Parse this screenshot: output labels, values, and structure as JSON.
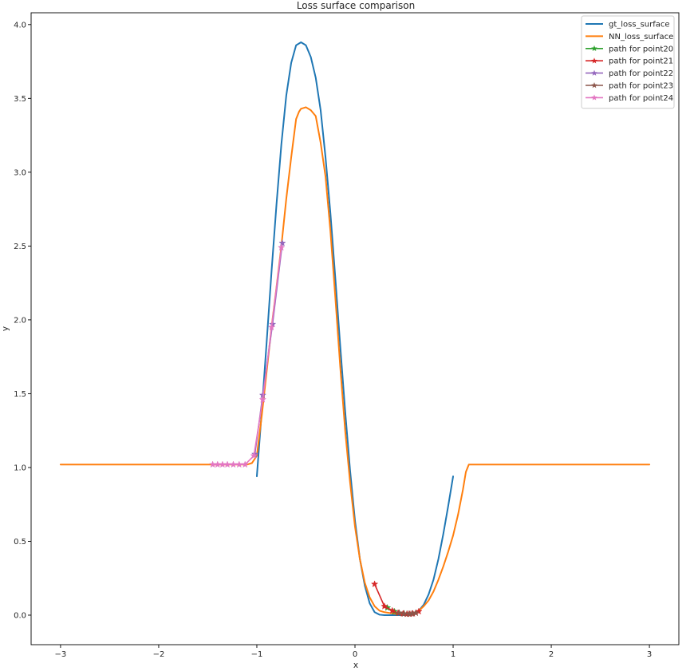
{
  "chart_data": {
    "type": "line",
    "title": "Loss surface comparison",
    "xlabel": "x",
    "ylabel": "y",
    "xlim": [
      -3.3,
      3.3
    ],
    "ylim": [
      -0.2,
      4.08
    ],
    "xticks": [
      -3,
      -2,
      -1,
      0,
      1,
      2,
      3
    ],
    "xtick_labels": [
      "−3",
      "−2",
      "−1",
      "0",
      "1",
      "2",
      "3"
    ],
    "yticks": [
      0.0,
      0.5,
      1.0,
      1.5,
      2.0,
      2.5,
      3.0,
      3.5,
      4.0
    ],
    "ytick_labels": [
      "0.0",
      "0.5",
      "1.0",
      "1.5",
      "2.0",
      "2.5",
      "3.0",
      "3.5",
      "4.0"
    ],
    "grid": false,
    "legend_position": "top-right",
    "series": [
      {
        "name": "gt_loss_surface",
        "color": "#1f77b4",
        "marker": "none",
        "x": [
          -1.0,
          -0.95,
          -0.9,
          -0.85,
          -0.8,
          -0.75,
          -0.7,
          -0.65,
          -0.6,
          -0.55,
          -0.5,
          -0.45,
          -0.4,
          -0.35,
          -0.3,
          -0.25,
          -0.2,
          -0.15,
          -0.1,
          -0.05,
          0.0,
          0.05,
          0.1,
          0.15,
          0.2,
          0.25,
          0.3,
          0.35,
          0.4,
          0.45,
          0.5,
          0.55,
          0.6,
          0.65,
          0.7,
          0.75,
          0.8,
          0.85,
          0.9,
          0.95,
          1.0
        ],
        "y": [
          0.94,
          1.38,
          1.85,
          2.33,
          2.78,
          3.19,
          3.52,
          3.74,
          3.86,
          3.88,
          3.86,
          3.78,
          3.64,
          3.42,
          3.1,
          2.72,
          2.28,
          1.82,
          1.38,
          0.98,
          0.64,
          0.38,
          0.2,
          0.08,
          0.02,
          0.003,
          0.0,
          0.0,
          0.0,
          0.0,
          0.0,
          0.0,
          0.01,
          0.03,
          0.07,
          0.14,
          0.24,
          0.38,
          0.55,
          0.74,
          0.94
        ]
      },
      {
        "name": "NN_loss_surface",
        "color": "#ff7f0e",
        "marker": "none",
        "x": [
          -3.0,
          -1.3,
          -1.1,
          -1.05,
          -1.0,
          -0.95,
          -0.9,
          -0.85,
          -0.8,
          -0.75,
          -0.7,
          -0.65,
          -0.6,
          -0.57,
          -0.55,
          -0.5,
          -0.45,
          -0.4,
          -0.35,
          -0.3,
          -0.25,
          -0.2,
          -0.15,
          -0.1,
          -0.05,
          0.0,
          0.05,
          0.1,
          0.15,
          0.2,
          0.25,
          0.3,
          0.35,
          0.4,
          0.45,
          0.5,
          0.55,
          0.6,
          0.65,
          0.7,
          0.75,
          0.8,
          0.85,
          0.9,
          0.95,
          1.0,
          1.05,
          1.1,
          1.13,
          1.16,
          1.2,
          3.0
        ],
        "y": [
          1.02,
          1.02,
          1.02,
          1.03,
          1.08,
          1.35,
          1.65,
          1.95,
          2.22,
          2.5,
          2.82,
          3.1,
          3.36,
          3.41,
          3.43,
          3.44,
          3.42,
          3.38,
          3.2,
          2.97,
          2.6,
          2.15,
          1.68,
          1.25,
          0.9,
          0.6,
          0.38,
          0.22,
          0.12,
          0.06,
          0.03,
          0.02,
          0.015,
          0.01,
          0.008,
          0.008,
          0.01,
          0.015,
          0.03,
          0.06,
          0.1,
          0.16,
          0.24,
          0.33,
          0.43,
          0.54,
          0.68,
          0.85,
          0.97,
          1.02,
          1.02,
          1.02
        ]
      },
      {
        "name": "path for point20",
        "color": "#2ca02c",
        "marker": "star",
        "x": [
          0.33,
          0.4,
          0.45,
          0.5,
          0.53
        ],
        "y": [
          0.05,
          0.025,
          0.015,
          0.01,
          0.008
        ]
      },
      {
        "name": "path for point21",
        "color": "#d62728",
        "marker": "star",
        "x": [
          0.2,
          0.3,
          0.38,
          0.44,
          0.49,
          0.53,
          0.56,
          0.59,
          0.62,
          0.65
        ],
        "y": [
          0.21,
          0.06,
          0.03,
          0.015,
          0.01,
          0.008,
          0.008,
          0.01,
          0.015,
          0.025
        ]
      },
      {
        "name": "path for point22",
        "color": "#9467bd",
        "marker": "star",
        "x": [
          -1.02,
          -0.94,
          -0.84,
          -0.74
        ],
        "y": [
          1.09,
          1.49,
          1.97,
          2.52
        ]
      },
      {
        "name": "path for point23",
        "color": "#8c564b",
        "marker": "star",
        "x": [
          0.45,
          0.5,
          0.55,
          0.58,
          0.62
        ],
        "y": [
          0.015,
          0.01,
          0.008,
          0.01,
          0.015
        ]
      },
      {
        "name": "path for point24",
        "color": "#e377c2",
        "marker": "star",
        "x": [
          -1.45,
          -1.4,
          -1.35,
          -1.3,
          -1.24,
          -1.18,
          -1.12,
          -1.03,
          -0.94,
          -0.85,
          -0.75
        ],
        "y": [
          1.02,
          1.02,
          1.02,
          1.02,
          1.02,
          1.02,
          1.02,
          1.08,
          1.46,
          1.95,
          2.49
        ]
      }
    ]
  }
}
